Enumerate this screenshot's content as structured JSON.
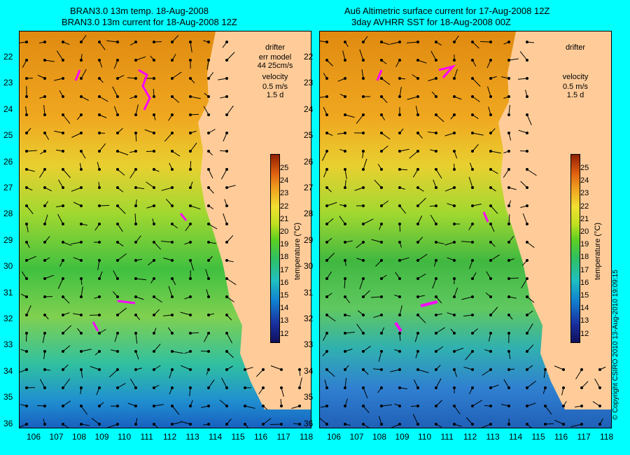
{
  "panels": [
    {
      "title_line1": "BRAN3.0 13m temp. 18-Aug-2008",
      "title_line2": "BRAN3.0 13m current for 18-Aug-2008 12Z",
      "legend": {
        "drifter": "drifter",
        "err_model": "err model",
        "err_value": "44 25cm/s",
        "velocity": "velocity",
        "speed": "0.5 m/s",
        "time": "1.5 d"
      }
    },
    {
      "title_line1": "Au6 Altimetric surface current for 17-Aug-2008 12Z",
      "title_line2": "3day AVHRR SST for 18-Aug-2008 00Z",
      "legend": {
        "drifter": "drifter",
        "velocity": "velocity",
        "speed": "0.5 m/s",
        "time": "1.5 d"
      }
    }
  ],
  "axes": {
    "lat_ticks": [
      "22",
      "23",
      "24",
      "25",
      "26",
      "27",
      "28",
      "29",
      "30",
      "31",
      "32",
      "33",
      "34",
      "35",
      "36"
    ],
    "lon_ticks": [
      "106",
      "107",
      "108",
      "109",
      "110",
      "111",
      "112",
      "113",
      "114",
      "115",
      "116",
      "117",
      "118"
    ]
  },
  "colorbar": {
    "label": "temperature (°C)",
    "ticks": [
      "25",
      "24",
      "23",
      "22",
      "21",
      "20",
      "19",
      "18",
      "17",
      "16",
      "15",
      "14",
      "13",
      "12"
    ]
  },
  "copyright": "© Copyright CSIRO 2010   13-Aug-2010 19:09:15",
  "colors": {
    "background": "#00ffff",
    "land": "#ffcc99",
    "drifter": "#ff00ff"
  }
}
